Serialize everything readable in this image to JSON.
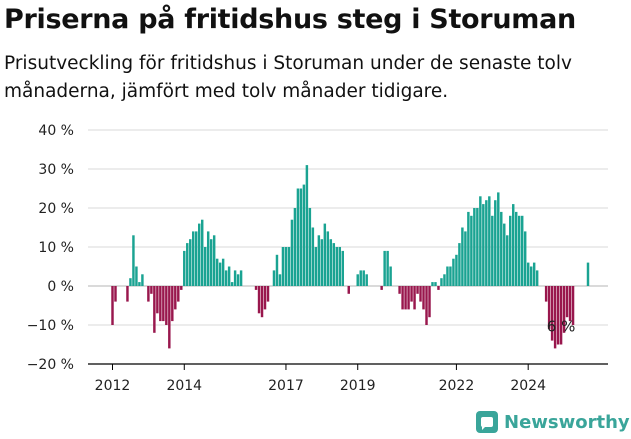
{
  "title": "Priserna på fritidshus steg i Storuman",
  "subtitle": "Prisutveckling för fritidshus i Storuman under de senaste tolv månaderna, jämfört med tolv månader tidigare.",
  "brand": {
    "name": "Newsworthy",
    "icon": "newsworthy-logo-icon"
  },
  "colors": {
    "positive": "#1aa392",
    "negative": "#99174d",
    "grid": "#d9d9d9",
    "axis": "#000000"
  },
  "chart_data": {
    "type": "bar",
    "ylim": [
      -20,
      40
    ],
    "y_ticks": [
      -20,
      -10,
      0,
      10,
      20,
      30,
      40
    ],
    "y_tick_labels": [
      "−20 %",
      "−10 %",
      "0 %",
      "10 %",
      "20 %",
      "30 %",
      "40 %"
    ],
    "x_ticks": [
      {
        "label": "2012",
        "index": 0
      },
      {
        "label": "2014",
        "index": 24
      },
      {
        "label": "2017",
        "index": 58
      },
      {
        "label": "2019",
        "index": 82
      },
      {
        "label": "2022",
        "index": 115
      },
      {
        "label": "2024",
        "index": 139
      }
    ],
    "grid": true,
    "annotation": {
      "text": "6 %",
      "index": 150
    },
    "values": [
      -10,
      -4,
      0,
      0,
      0,
      -4,
      2,
      13,
      5,
      1,
      3,
      0,
      -4,
      -2,
      -12,
      -7,
      -9,
      -9,
      -10,
      -16,
      -9,
      -6,
      -4,
      -1,
      9,
      11,
      12,
      14,
      14,
      16,
      17,
      10,
      14,
      12,
      13,
      7,
      6,
      7,
      4,
      5,
      1,
      4,
      3,
      4,
      0,
      0,
      0,
      0,
      -1,
      -7,
      -8,
      -6,
      -4,
      0,
      4,
      8,
      3,
      10,
      10,
      10,
      17,
      20,
      25,
      25,
      26,
      31,
      20,
      15,
      10,
      13,
      12,
      16,
      14,
      12,
      11,
      10,
      10,
      9,
      0,
      -2,
      0,
      0,
      3,
      4,
      4,
      3,
      0,
      0,
      0,
      0,
      -1,
      9,
      9,
      5,
      0,
      0,
      -2,
      -6,
      -6,
      -6,
      -4,
      -6,
      -2,
      -4,
      -6,
      -10,
      -8,
      1,
      1,
      -1,
      2,
      3,
      5,
      5,
      7,
      8,
      11,
      15,
      14,
      19,
      18,
      20,
      20,
      23,
      21,
      22,
      23,
      18,
      22,
      24,
      19,
      16,
      13,
      18,
      21,
      19,
      18,
      18,
      14,
      6,
      5,
      6,
      4,
      0,
      0,
      -4,
      -11,
      -14,
      -16,
      -15,
      -15,
      -12,
      -8,
      -9,
      -10,
      0,
      0,
      0,
      0,
      6
    ]
  }
}
